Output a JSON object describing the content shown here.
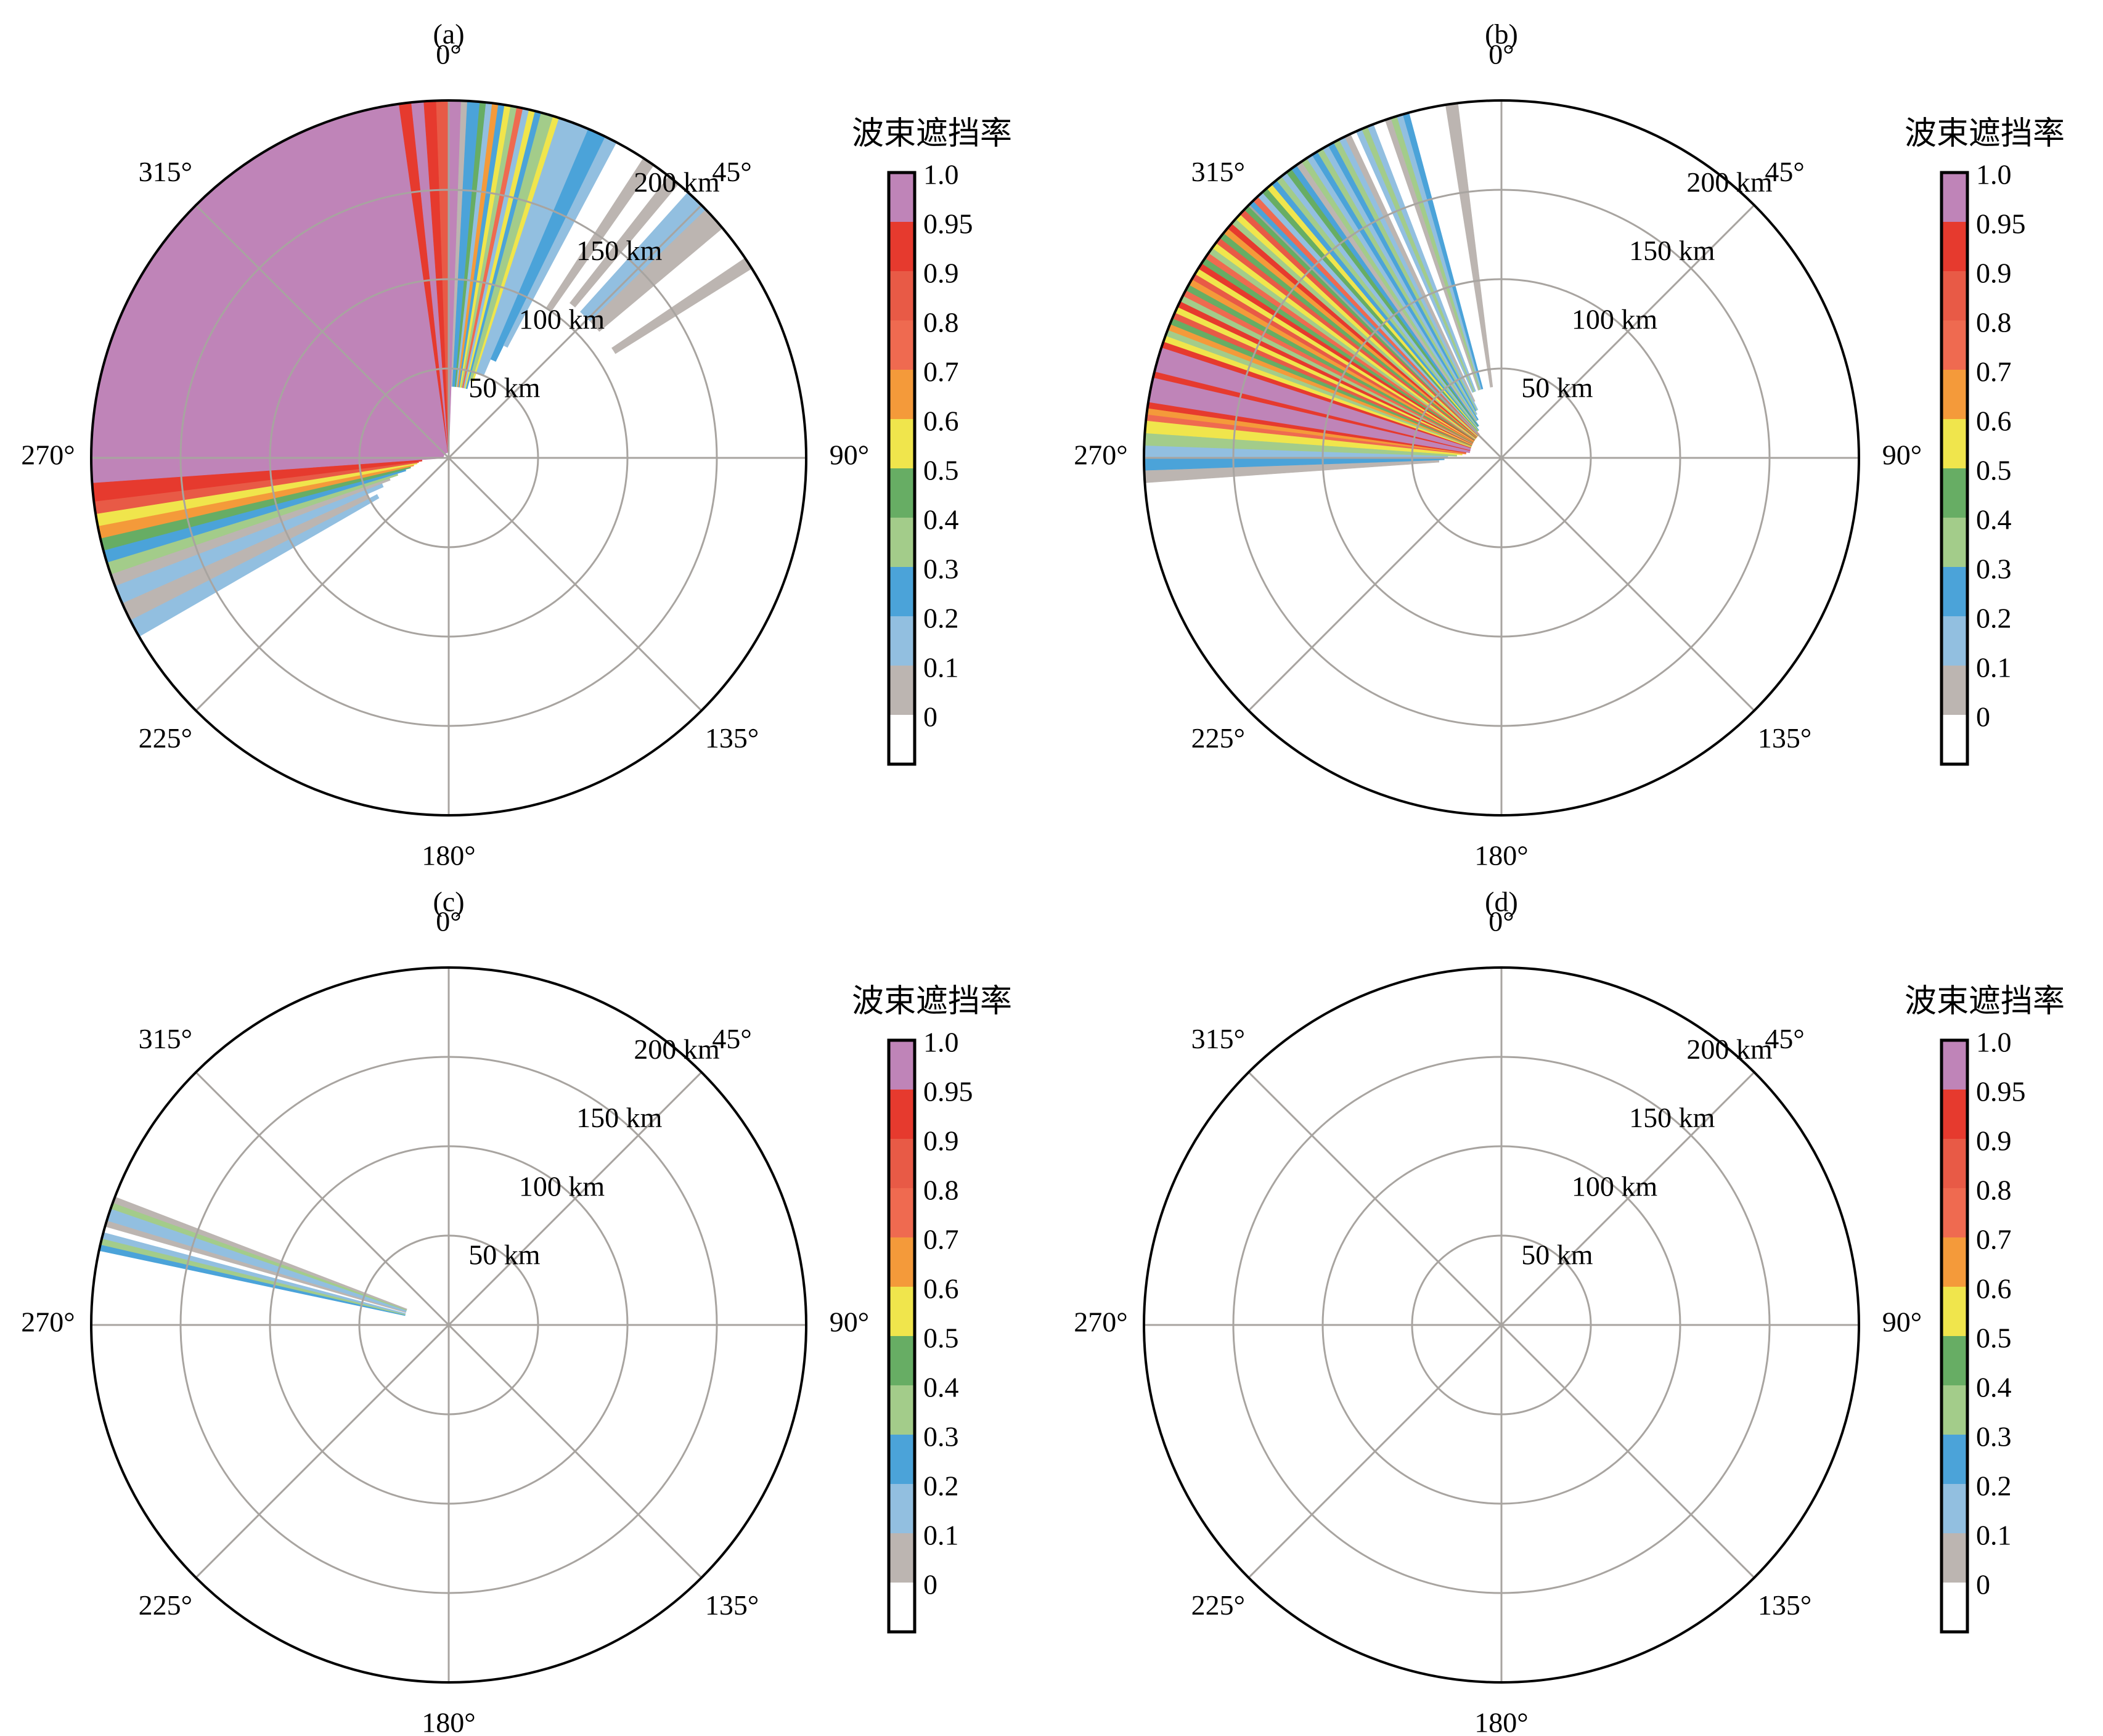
{
  "colorbar": {
    "title": "波束遮挡率",
    "tick_labels": [
      "0",
      "0.1",
      "0.2",
      "0.3",
      "0.4",
      "0.5",
      "0.6",
      "0.7",
      "0.8",
      "0.9",
      "0.95",
      "1.0"
    ],
    "bins": [
      {
        "color": "#ffffff"
      },
      {
        "color": "#bcb5b1"
      },
      {
        "color": "#92bfe0"
      },
      {
        "color": "#4ba3d9"
      },
      {
        "color": "#a3cc8a"
      },
      {
        "color": "#67ad64"
      },
      {
        "color": "#f0e54c"
      },
      {
        "color": "#f49a3a"
      },
      {
        "color": "#ef6a50"
      },
      {
        "color": "#e85a46"
      },
      {
        "color": "#e63a2e"
      },
      {
        "color": "#bf84b8"
      }
    ]
  },
  "common": {
    "angle_labels": [
      "0°",
      "45°",
      "90°",
      "135°",
      "180°",
      "225°",
      "270°",
      "315°"
    ],
    "ring_labels": [
      "50 km",
      "100 km",
      "150 km",
      "200 km"
    ]
  },
  "chart_data": [
    {
      "type": "polar-sector",
      "panel_label": "(a)",
      "r_max_km": 200,
      "ring_km": [
        50,
        100,
        150,
        200
      ],
      "angle_ticks_deg": [
        0,
        45,
        90,
        135,
        180,
        225,
        270,
        315
      ],
      "sectors": [
        {
          "a0": 240,
          "a1": 243,
          "r0": 45,
          "r1": 200,
          "bin": 2
        },
        {
          "a0": 243,
          "a1": 246,
          "r0": 50,
          "r1": 200,
          "bin": 1
        },
        {
          "a0": 246,
          "a1": 249,
          "r0": 40,
          "r1": 200,
          "bin": 2
        },
        {
          "a0": 249,
          "a1": 251,
          "r0": 35,
          "r1": 200,
          "bin": 1
        },
        {
          "a0": 251,
          "a1": 253,
          "r0": 30,
          "r1": 200,
          "bin": 4
        },
        {
          "a0": 253,
          "a1": 255,
          "r0": 25,
          "r1": 200,
          "bin": 3
        },
        {
          "a0": 255,
          "a1": 257,
          "r0": 22,
          "r1": 200,
          "bin": 5
        },
        {
          "a0": 257,
          "a1": 259,
          "r0": 20,
          "r1": 200,
          "bin": 7
        },
        {
          "a0": 259,
          "a1": 261,
          "r0": 18,
          "r1": 200,
          "bin": 6
        },
        {
          "a0": 261,
          "a1": 263,
          "r0": 17,
          "r1": 200,
          "bin": 9
        },
        {
          "a0": 263,
          "a1": 266,
          "r0": 15,
          "r1": 200,
          "bin": 10
        },
        {
          "a0": 266,
          "a1": 352,
          "r0": 3,
          "r1": 200,
          "bin": 11
        },
        {
          "a0": 352,
          "a1": 354,
          "r0": 3,
          "r1": 200,
          "bin": 10
        },
        {
          "a0": 354,
          "a1": 356,
          "r0": 3,
          "r1": 200,
          "bin": 11
        },
        {
          "a0": 356,
          "a1": 358,
          "r0": 3,
          "r1": 200,
          "bin": 10
        },
        {
          "a0": 358,
          "a1": 360,
          "r0": 3,
          "r1": 200,
          "bin": 9
        },
        {
          "a0": 0,
          "a1": 2,
          "r0": 3,
          "r1": 200,
          "bin": 11
        },
        {
          "a0": 2,
          "a1": 3,
          "r0": 40,
          "r1": 200,
          "bin": 1
        },
        {
          "a0": 3,
          "a1": 5,
          "r0": 40,
          "r1": 200,
          "bin": 3
        },
        {
          "a0": 5,
          "a1": 6,
          "r0": 40,
          "r1": 200,
          "bin": 5
        },
        {
          "a0": 6,
          "a1": 7,
          "r0": 40,
          "r1": 200,
          "bin": 2
        },
        {
          "a0": 7,
          "a1": 8,
          "r0": 40,
          "r1": 200,
          "bin": 7
        },
        {
          "a0": 8,
          "a1": 9,
          "r0": 40,
          "r1": 200,
          "bin": 3
        },
        {
          "a0": 9,
          "a1": 10,
          "r0": 40,
          "r1": 200,
          "bin": 6
        },
        {
          "a0": 10,
          "a1": 11,
          "r0": 40,
          "r1": 200,
          "bin": 4
        },
        {
          "a0": 11,
          "a1": 12,
          "r0": 40,
          "r1": 200,
          "bin": 8
        },
        {
          "a0": 12,
          "a1": 13,
          "r0": 40,
          "r1": 200,
          "bin": 2
        },
        {
          "a0": 13,
          "a1": 14,
          "r0": 40,
          "r1": 200,
          "bin": 6
        },
        {
          "a0": 14,
          "a1": 15,
          "r0": 40,
          "r1": 200,
          "bin": 3
        },
        {
          "a0": 15,
          "a1": 17,
          "r0": 45,
          "r1": 200,
          "bin": 4
        },
        {
          "a0": 17,
          "a1": 18,
          "r0": 45,
          "r1": 200,
          "bin": 6
        },
        {
          "a0": 18,
          "a1": 23,
          "r0": 50,
          "r1": 200,
          "bin": 2
        },
        {
          "a0": 23,
          "a1": 26,
          "r0": 60,
          "r1": 200,
          "bin": 3
        },
        {
          "a0": 26,
          "a1": 28,
          "r0": 70,
          "r1": 200,
          "bin": 2
        },
        {
          "a0": 33,
          "a1": 35,
          "r0": 100,
          "r1": 200,
          "bin": 1
        },
        {
          "a0": 38,
          "a1": 40,
          "r0": 110,
          "r1": 200,
          "bin": 1
        },
        {
          "a0": 42,
          "a1": 46,
          "r0": 110,
          "r1": 200,
          "bin": 2
        },
        {
          "a0": 46,
          "a1": 50,
          "r0": 110,
          "r1": 200,
          "bin": 1
        },
        {
          "a0": 56,
          "a1": 58,
          "r0": 110,
          "r1": 200,
          "bin": 1
        }
      ]
    },
    {
      "type": "polar-sector",
      "panel_label": "(b)",
      "r_max_km": 200,
      "ring_km": [
        50,
        100,
        150,
        200
      ],
      "angle_ticks_deg": [
        0,
        45,
        90,
        135,
        180,
        225,
        270,
        315
      ],
      "sectors": [
        {
          "a0": 266,
          "a1": 268,
          "r0": 35,
          "r1": 200,
          "bin": 1
        },
        {
          "a0": 268,
          "a1": 270,
          "r0": 32,
          "r1": 200,
          "bin": 3
        },
        {
          "a0": 270,
          "a1": 272,
          "r0": 30,
          "r1": 200,
          "bin": 2
        },
        {
          "a0": 272,
          "a1": 274,
          "r0": 25,
          "r1": 200,
          "bin": 4
        },
        {
          "a0": 274,
          "a1": 276,
          "r0": 22,
          "r1": 200,
          "bin": 6
        },
        {
          "a0": 276,
          "a1": 277,
          "r0": 20,
          "r1": 200,
          "bin": 8
        },
        {
          "a0": 277,
          "a1": 278,
          "r0": 20,
          "r1": 200,
          "bin": 7
        },
        {
          "a0": 278,
          "a1": 279,
          "r0": 20,
          "r1": 200,
          "bin": 10
        },
        {
          "a0": 279,
          "a1": 283,
          "r0": 18,
          "r1": 200,
          "bin": 11
        },
        {
          "a0": 283,
          "a1": 284,
          "r0": 18,
          "r1": 200,
          "bin": 10
        },
        {
          "a0": 284,
          "a1": 288,
          "r0": 18,
          "r1": 200,
          "bin": 11
        },
        {
          "a0": 288,
          "a1": 289,
          "r0": 18,
          "r1": 200,
          "bin": 10
        },
        {
          "a0": 289,
          "a1": 290,
          "r0": 18,
          "r1": 200,
          "bin": 6
        },
        {
          "a0": 290,
          "a1": 291,
          "r0": 18,
          "r1": 200,
          "bin": 4
        },
        {
          "a0": 291,
          "a1": 292,
          "r0": 18,
          "r1": 200,
          "bin": 7
        },
        {
          "a0": 292,
          "a1": 293,
          "r0": 18,
          "r1": 200,
          "bin": 5
        },
        {
          "a0": 293,
          "a1": 294,
          "r0": 18,
          "r1": 200,
          "bin": 9
        },
        {
          "a0": 294,
          "a1": 295,
          "r0": 18,
          "r1": 200,
          "bin": 6
        },
        {
          "a0": 295,
          "a1": 296,
          "r0": 18,
          "r1": 200,
          "bin": 10
        },
        {
          "a0": 296,
          "a1": 297,
          "r0": 18,
          "r1": 200,
          "bin": 4
        },
        {
          "a0": 297,
          "a1": 298,
          "r0": 18,
          "r1": 200,
          "bin": 8
        },
        {
          "a0": 298,
          "a1": 299,
          "r0": 18,
          "r1": 200,
          "bin": 5
        },
        {
          "a0": 299,
          "a1": 300,
          "r0": 18,
          "r1": 200,
          "bin": 7
        },
        {
          "a0": 300,
          "a1": 301,
          "r0": 18,
          "r1": 200,
          "bin": 9
        },
        {
          "a0": 301,
          "a1": 302,
          "r0": 18,
          "r1": 200,
          "bin": 6
        },
        {
          "a0": 302,
          "a1": 303,
          "r0": 18,
          "r1": 200,
          "bin": 10
        },
        {
          "a0": 303,
          "a1": 304,
          "r0": 18,
          "r1": 200,
          "bin": 5
        },
        {
          "a0": 304,
          "a1": 305,
          "r0": 18,
          "r1": 200,
          "bin": 8
        },
        {
          "a0": 305,
          "a1": 306,
          "r0": 18,
          "r1": 200,
          "bin": 4
        },
        {
          "a0": 306,
          "a1": 307,
          "r0": 18,
          "r1": 200,
          "bin": 6
        },
        {
          "a0": 307,
          "a1": 308,
          "r0": 18,
          "r1": 200,
          "bin": 9
        },
        {
          "a0": 308,
          "a1": 309,
          "r0": 18,
          "r1": 200,
          "bin": 5
        },
        {
          "a0": 309,
          "a1": 310,
          "r0": 18,
          "r1": 200,
          "bin": 7
        },
        {
          "a0": 310,
          "a1": 311,
          "r0": 18,
          "r1": 200,
          "bin": 10
        },
        {
          "a0": 311,
          "a1": 312,
          "r0": 18,
          "r1": 200,
          "bin": 4
        },
        {
          "a0": 312,
          "a1": 313,
          "r0": 18,
          "r1": 200,
          "bin": 6
        },
        {
          "a0": 313,
          "a1": 314,
          "r0": 18,
          "r1": 200,
          "bin": 9
        },
        {
          "a0": 314,
          "a1": 315,
          "r0": 18,
          "r1": 200,
          "bin": 5
        },
        {
          "a0": 315,
          "a1": 316,
          "r0": 18,
          "r1": 200,
          "bin": 3
        },
        {
          "a0": 316,
          "a1": 317,
          "r0": 18,
          "r1": 200,
          "bin": 8
        },
        {
          "a0": 317,
          "a1": 318,
          "r0": 20,
          "r1": 200,
          "bin": 2
        },
        {
          "a0": 318,
          "a1": 319,
          "r0": 20,
          "r1": 200,
          "bin": 5
        },
        {
          "a0": 319,
          "a1": 320,
          "r0": 20,
          "r1": 200,
          "bin": 6
        },
        {
          "a0": 320,
          "a1": 321,
          "r0": 20,
          "r1": 200,
          "bin": 3
        },
        {
          "a0": 321,
          "a1": 322,
          "r0": 22,
          "r1": 200,
          "bin": 4
        },
        {
          "a0": 322,
          "a1": 323,
          "r0": 22,
          "r1": 200,
          "bin": 2
        },
        {
          "a0": 323,
          "a1": 324,
          "r0": 22,
          "r1": 200,
          "bin": 5
        },
        {
          "a0": 324,
          "a1": 325,
          "r0": 22,
          "r1": 200,
          "bin": 3
        },
        {
          "a0": 325,
          "a1": 326,
          "r0": 25,
          "r1": 200,
          "bin": 1
        },
        {
          "a0": 326,
          "a1": 327,
          "r0": 25,
          "r1": 200,
          "bin": 4
        },
        {
          "a0": 327,
          "a1": 328,
          "r0": 25,
          "r1": 200,
          "bin": 2
        },
        {
          "a0": 328,
          "a1": 329,
          "r0": 25,
          "r1": 200,
          "bin": 3
        },
        {
          "a0": 329,
          "a1": 330,
          "r0": 28,
          "r1": 200,
          "bin": 4
        },
        {
          "a0": 330,
          "a1": 331,
          "r0": 28,
          "r1": 200,
          "bin": 2
        },
        {
          "a0": 331,
          "a1": 332,
          "r0": 30,
          "r1": 200,
          "bin": 3
        },
        {
          "a0": 332,
          "a1": 333,
          "r0": 30,
          "r1": 200,
          "bin": 4
        },
        {
          "a0": 333,
          "a1": 334,
          "r0": 30,
          "r1": 200,
          "bin": 2
        },
        {
          "a0": 334,
          "a1": 335,
          "r0": 35,
          "r1": 200,
          "bin": 1
        },
        {
          "a0": 336,
          "a1": 337,
          "r0": 40,
          "r1": 200,
          "bin": 2
        },
        {
          "a0": 337,
          "a1": 338,
          "r0": 40,
          "r1": 200,
          "bin": 4
        },
        {
          "a0": 338,
          "a1": 339,
          "r0": 40,
          "r1": 200,
          "bin": 2
        },
        {
          "a0": 341,
          "a1": 342,
          "r0": 40,
          "r1": 200,
          "bin": 1
        },
        {
          "a0": 342,
          "a1": 343,
          "r0": 40,
          "r1": 200,
          "bin": 4
        },
        {
          "a0": 343,
          "a1": 344,
          "r0": 40,
          "r1": 200,
          "bin": 2
        },
        {
          "a0": 344,
          "a1": 345,
          "r0": 40,
          "r1": 200,
          "bin": 3
        },
        {
          "a0": 351,
          "a1": 353,
          "r0": 40,
          "r1": 200,
          "bin": 1
        }
      ]
    },
    {
      "type": "polar-sector",
      "panel_label": "(c)",
      "r_max_km": 200,
      "ring_km": [
        50,
        100,
        150,
        200
      ],
      "angle_ticks_deg": [
        0,
        45,
        90,
        135,
        180,
        225,
        270,
        315
      ],
      "sectors": [
        {
          "a0": 282,
          "a1": 283,
          "r0": 25,
          "r1": 200,
          "bin": 3
        },
        {
          "a0": 283,
          "a1": 284,
          "r0": 25,
          "r1": 200,
          "bin": 4
        },
        {
          "a0": 284,
          "a1": 285,
          "r0": 25,
          "r1": 200,
          "bin": 2
        },
        {
          "a0": 286,
          "a1": 287,
          "r0": 25,
          "r1": 200,
          "bin": 1
        },
        {
          "a0": 287,
          "a1": 289,
          "r0": 25,
          "r1": 200,
          "bin": 2
        },
        {
          "a0": 289,
          "a1": 290,
          "r0": 25,
          "r1": 200,
          "bin": 4
        },
        {
          "a0": 290,
          "a1": 291,
          "r0": 25,
          "r1": 200,
          "bin": 1
        }
      ]
    },
    {
      "type": "polar-sector",
      "panel_label": "(d)",
      "r_max_km": 200,
      "ring_km": [
        50,
        100,
        150,
        200
      ],
      "angle_ticks_deg": [
        0,
        45,
        90,
        135,
        180,
        225,
        270,
        315
      ],
      "sectors": []
    }
  ]
}
